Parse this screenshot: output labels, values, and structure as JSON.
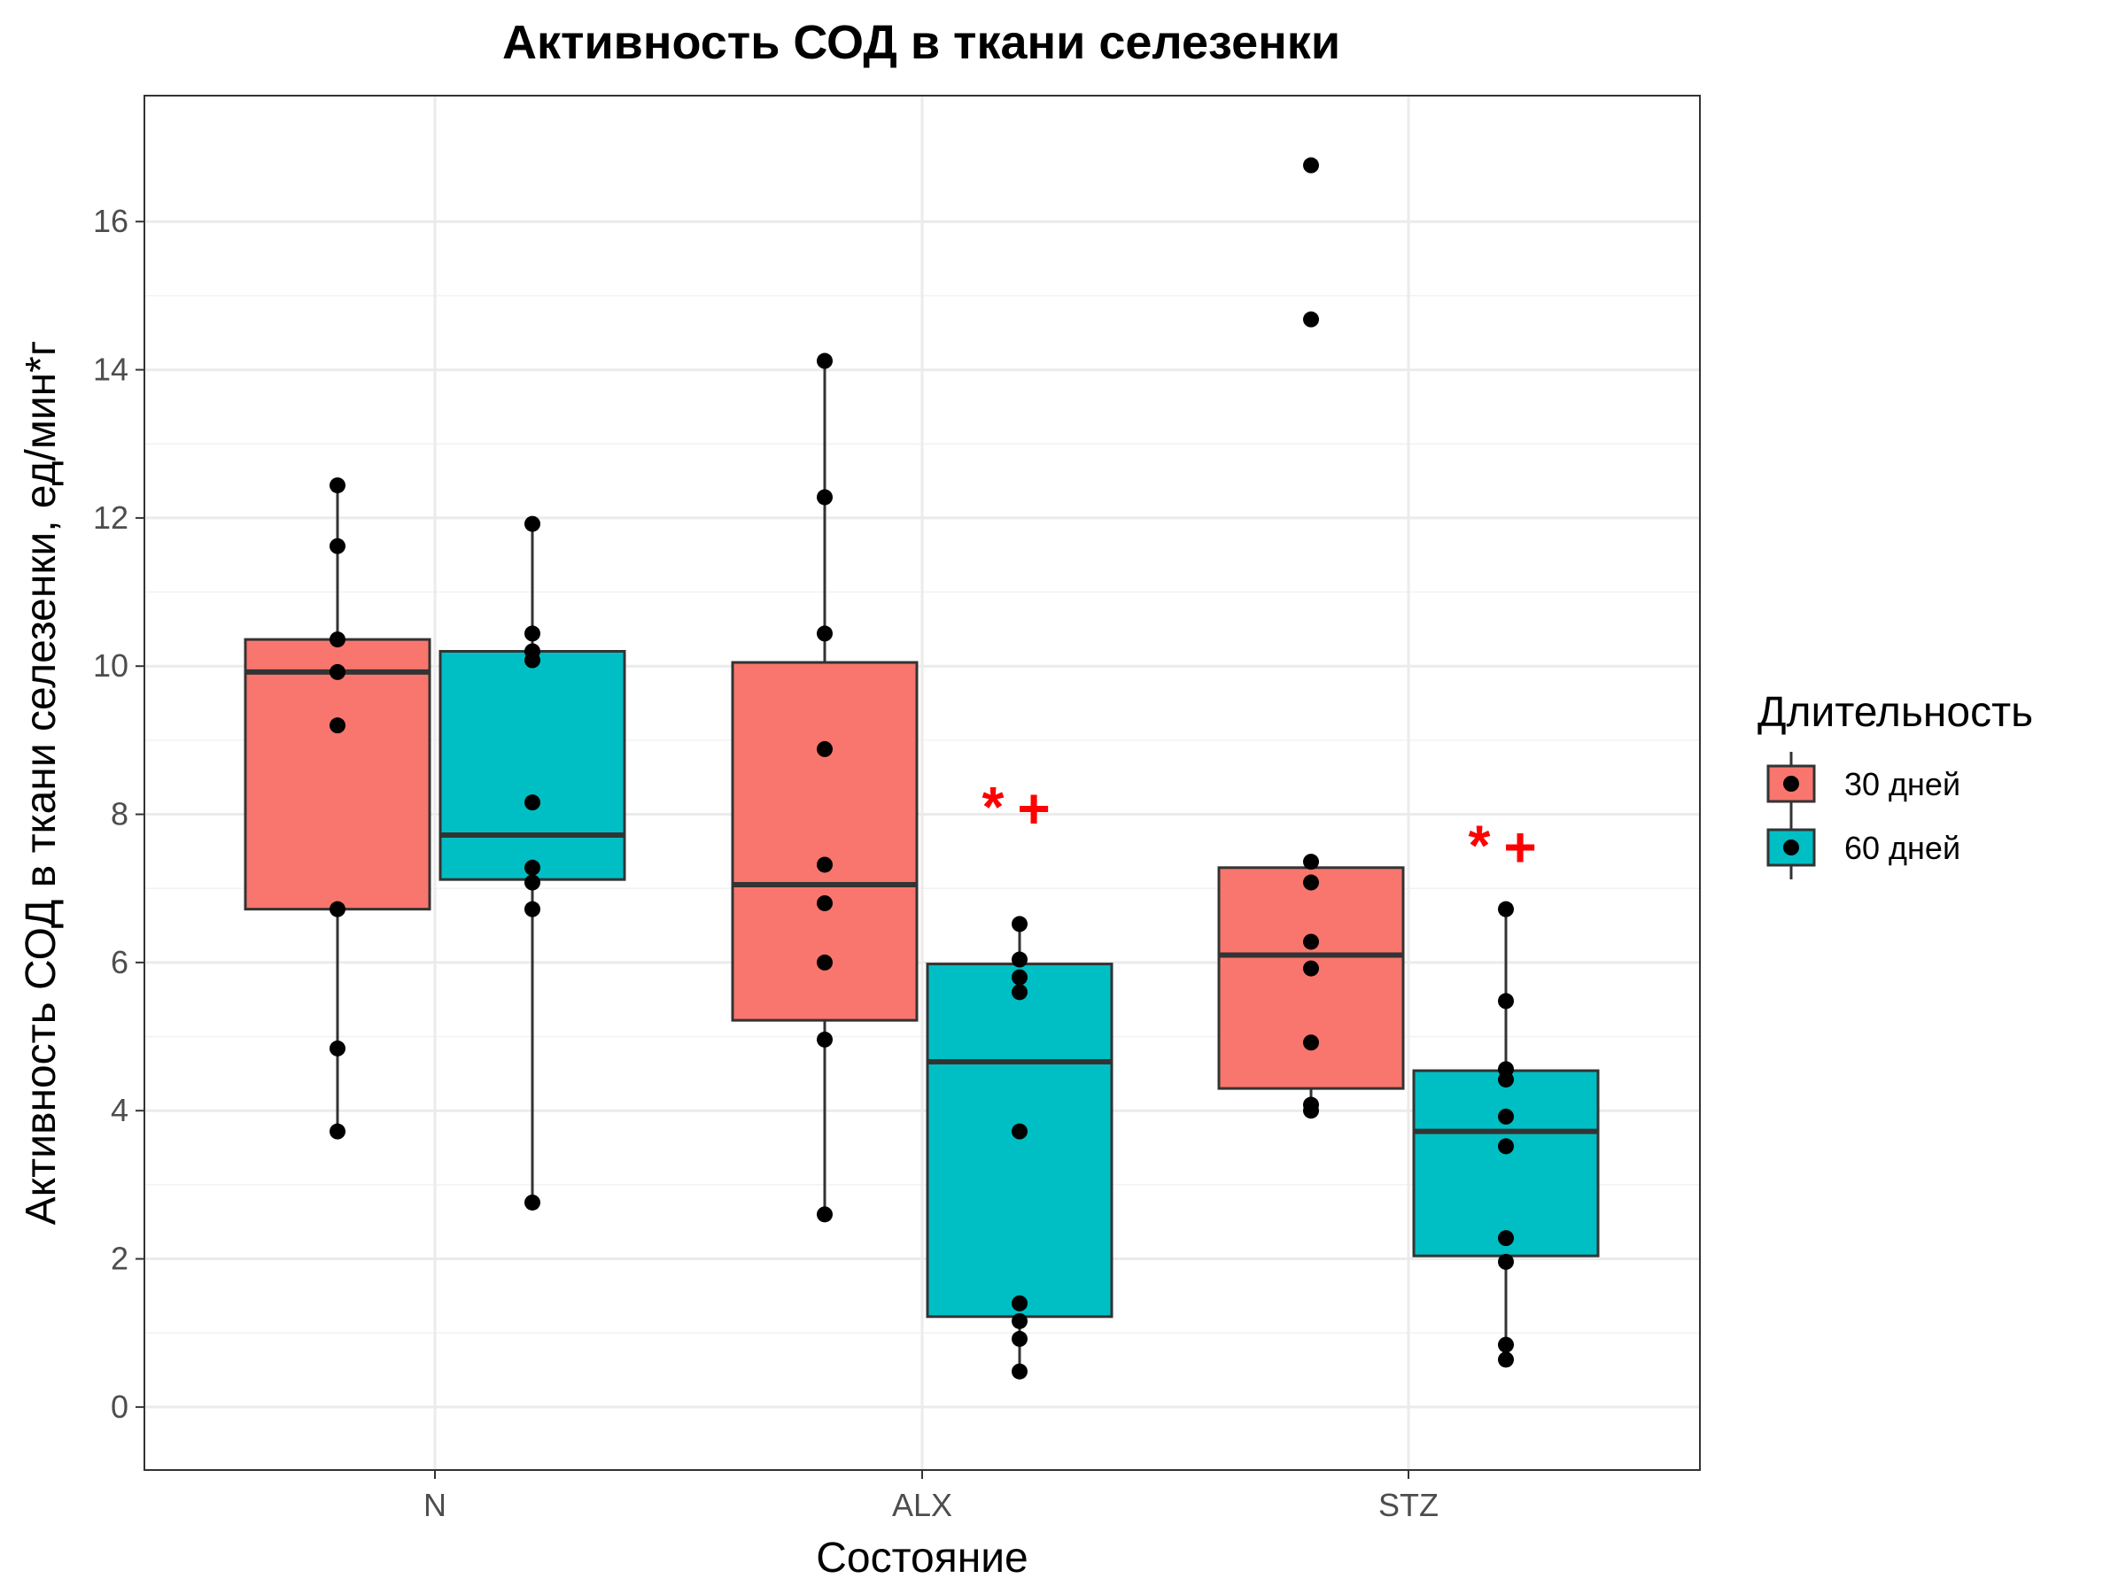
{
  "chart_data": {
    "type": "box",
    "title": "Активность СОД в ткани селезенки",
    "xlabel": "Состояние",
    "ylabel": "Активность СОД в ткани селезенки, ед/мин*г",
    "categories": [
      "N",
      "ALX",
      "STZ"
    ],
    "ylim": [
      -0.85,
      17.7
    ],
    "yticks": [
      "0",
      "2",
      "4",
      "6",
      "8",
      "10",
      "12",
      "14",
      "16"
    ],
    "ytick_values": [
      0,
      2,
      4,
      6,
      8,
      10,
      12,
      14,
      16
    ],
    "grid": true,
    "legend": {
      "title": "Длительность",
      "placement": "right",
      "entries": [
        "30 дней",
        "60 дней"
      ]
    },
    "colors": {
      "30 дней": "#F8766D",
      "60 дней": "#00BFC4",
      "annotation": "#FF0000"
    },
    "series": [
      {
        "name": "30 дней",
        "boxes": [
          {
            "category": "N",
            "q1": 6.72,
            "median": 9.92,
            "q3": 10.36,
            "whisker_low": 3.72,
            "whisker_high": 12.44,
            "points": [
              12.44,
              11.62,
              10.36,
              9.92,
              9.2,
              6.72,
              4.84,
              3.72
            ]
          },
          {
            "category": "ALX",
            "q1": 5.22,
            "median": 7.05,
            "q3": 10.05,
            "whisker_low": 2.6,
            "whisker_high": 14.12,
            "points": [
              14.12,
              12.28,
              10.44,
              8.88,
              7.32,
              6.8,
              6.0,
              4.96,
              2.6
            ]
          },
          {
            "category": "STZ",
            "q1": 4.3,
            "median": 6.1,
            "q3": 7.28,
            "whisker_low": 4.0,
            "whisker_high": 7.36,
            "points": [
              16.76,
              14.68,
              7.36,
              7.08,
              6.28,
              5.92,
              4.92,
              4.08,
              4.0
            ]
          }
        ]
      },
      {
        "name": "60 дней",
        "boxes": [
          {
            "category": "N",
            "q1": 7.12,
            "median": 7.72,
            "q3": 10.2,
            "whisker_low": 2.76,
            "whisker_high": 11.92,
            "points": [
              11.92,
              10.44,
              10.2,
              10.08,
              8.16,
              7.28,
              7.08,
              6.72,
              2.76
            ]
          },
          {
            "category": "ALX",
            "q1": 1.22,
            "median": 4.66,
            "q3": 5.98,
            "whisker_low": 0.48,
            "whisker_high": 6.52,
            "points": [
              6.52,
              6.04,
              5.8,
              5.6,
              3.72,
              1.4,
              1.16,
              0.92,
              0.48
            ]
          },
          {
            "category": "STZ",
            "q1": 2.04,
            "median": 3.72,
            "q3": 4.54,
            "whisker_low": 0.64,
            "whisker_high": 6.72,
            "points": [
              6.72,
              5.48,
              4.56,
              4.42,
              3.92,
              3.52,
              2.28,
              1.96,
              0.84,
              0.64
            ]
          }
        ]
      }
    ],
    "annotations": [
      {
        "text": "*",
        "category": "ALX",
        "series": "60 дней",
        "y": 8.08
      },
      {
        "text": "+",
        "category": "ALX",
        "series": "60 дней",
        "y": 8.08
      },
      {
        "text": "*",
        "category": "STZ",
        "series": "60 дней",
        "y": 7.56
      },
      {
        "text": "+",
        "category": "STZ",
        "series": "60 дней",
        "y": 7.56
      }
    ]
  }
}
